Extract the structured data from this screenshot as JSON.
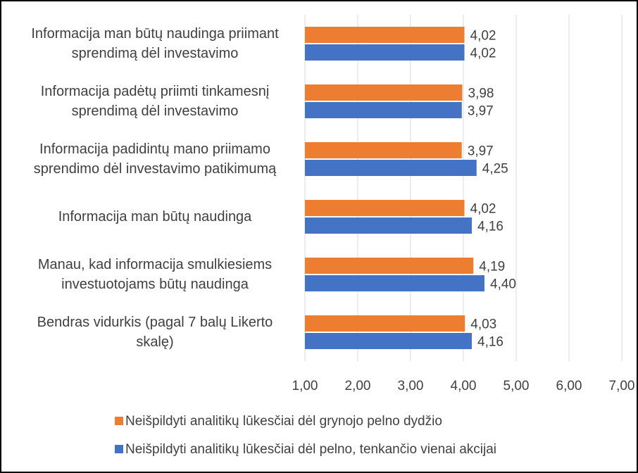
{
  "chart_data": {
    "type": "bar",
    "orientation": "horizontal",
    "categories": [
      "Informacija man būtų naudinga priimant\nsprendimą dėl investavimo",
      "Informacija padėtų priimti tinkamesnį\nsprendimą dėl investavimo",
      "Informacija padidintų mano priimamo\nsprendimo dėl investavimo patikimumą",
      "Informacija man būtų naudinga",
      "Manau, kad informacija smulkiesiems\ninvestuotojams būtų naudinga",
      "Bendras vidurkis (pagal 7 balų Likerto\nskalę)"
    ],
    "series": [
      {
        "name": "Neišpildyti analitikų lūkesčiai dėl grynojo pelno dydžio",
        "color": "#ed7d31",
        "values": [
          4.02,
          3.98,
          3.97,
          4.02,
          4.19,
          4.03
        ],
        "value_labels": [
          "4,02",
          "3,98",
          "3,97",
          "4,02",
          "4,19",
          "4,03"
        ]
      },
      {
        "name": "Neišpildyti analitikų lūkesčiai dėl pelno, tenkančio vienai akcijai",
        "color": "#4472c4",
        "values": [
          4.02,
          3.97,
          4.25,
          4.16,
          4.4,
          4.16
        ],
        "value_labels": [
          "4,02",
          "3,97",
          "4,25",
          "4,16",
          "4,40",
          "4,16"
        ]
      }
    ],
    "xlim": [
      1,
      7
    ],
    "xticks": [
      {
        "value": 1,
        "label": "1,00"
      },
      {
        "value": 2,
        "label": "2,00"
      },
      {
        "value": 3,
        "label": "3,00"
      },
      {
        "value": 4,
        "label": "4,00"
      },
      {
        "value": 5,
        "label": "5,00"
      },
      {
        "value": 6,
        "label": "6,00"
      },
      {
        "value": 7,
        "label": "7,00"
      }
    ],
    "grid": true,
    "legend": "bottom"
  }
}
